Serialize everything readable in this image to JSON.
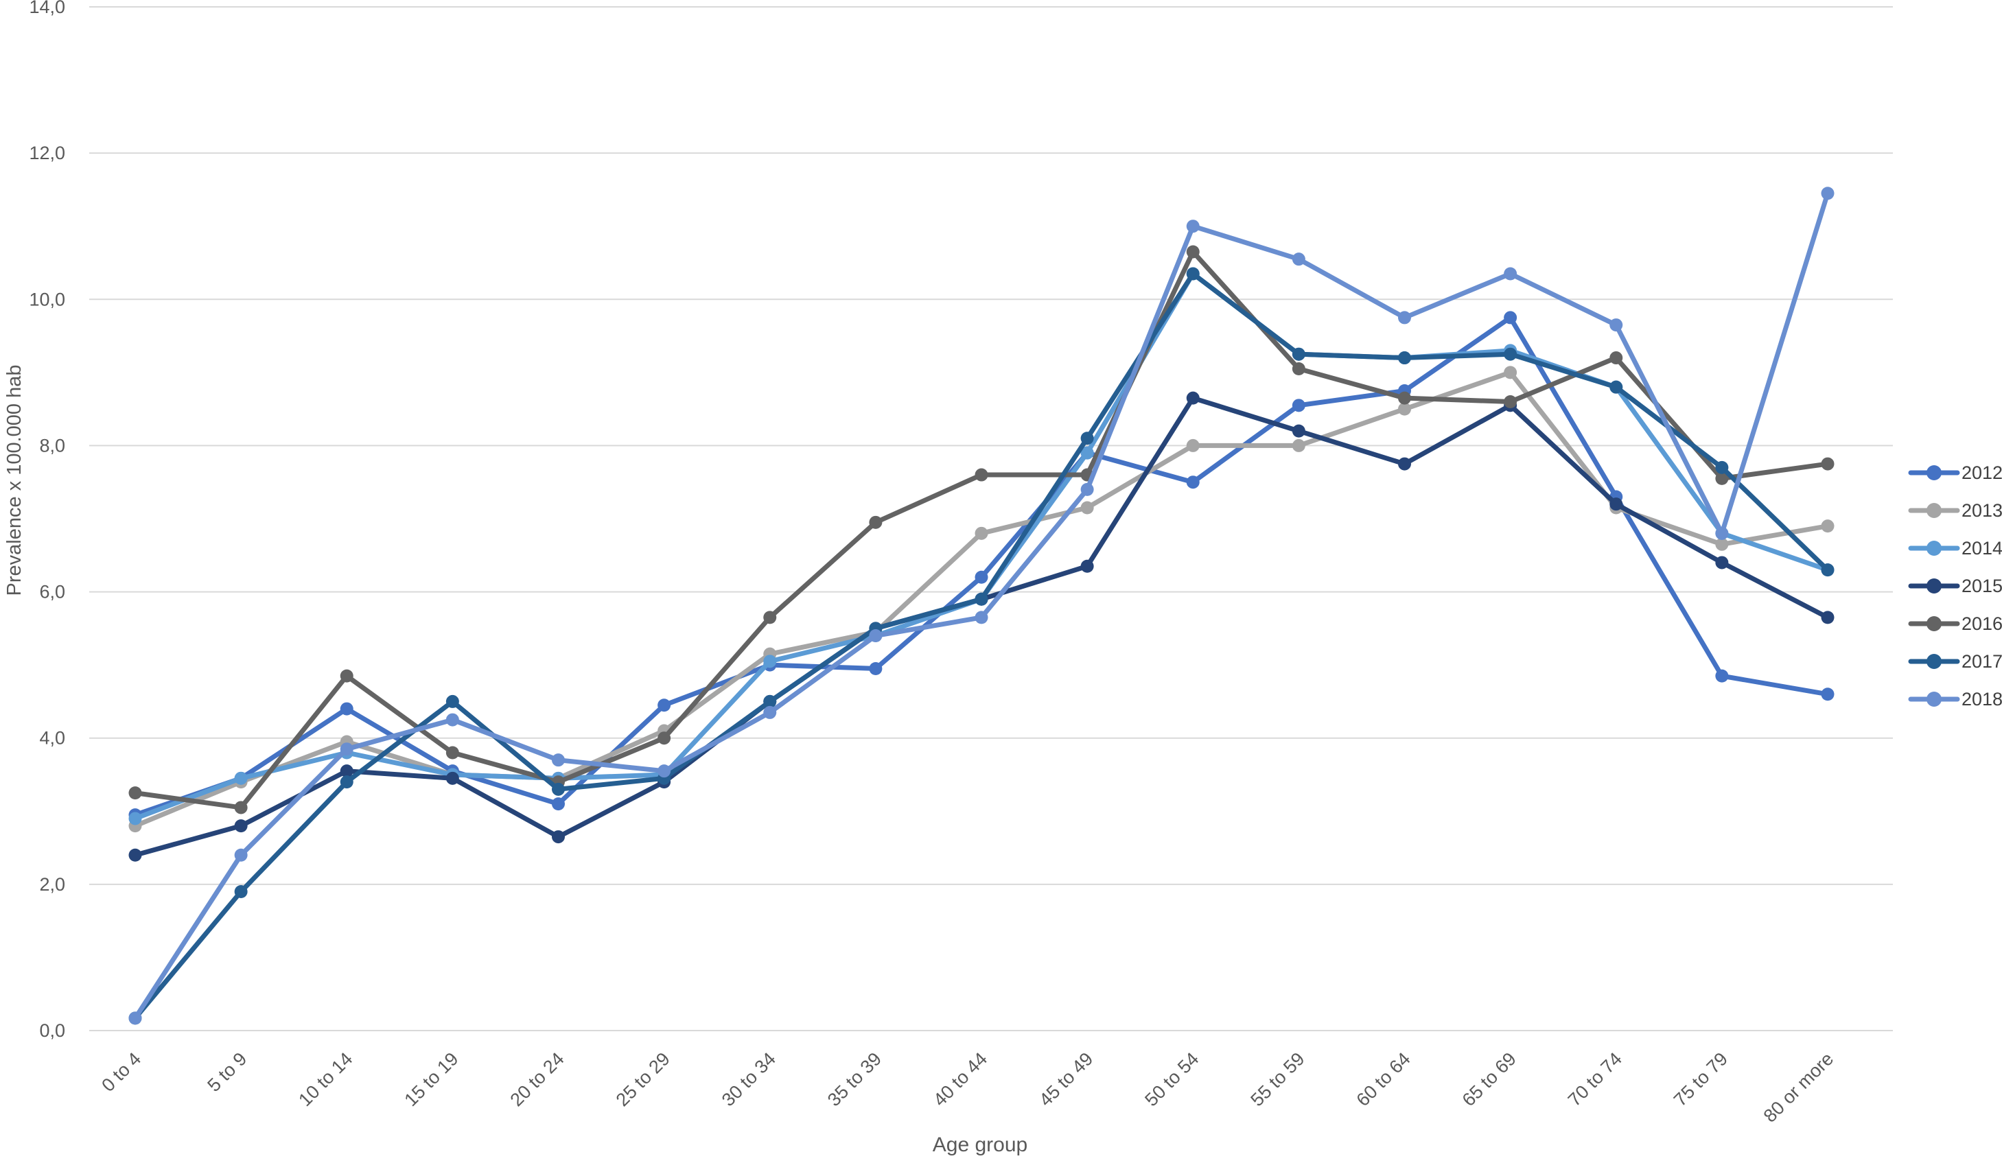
{
  "chart_data": {
    "type": "line",
    "title": "",
    "xlabel": "Age group",
    "ylabel": "Prevalence x 100.000 hab",
    "categories": [
      "0 to 4",
      "5 to 9",
      "10 to 14",
      "15 to 19",
      "20 to 24",
      "25 to 29",
      "30 to 34",
      "35 to 39",
      "40 to 44",
      "45 to 49",
      "50 to 54",
      "55 to 59",
      "60 to 64",
      "65 to 69",
      "70 to 74",
      "75 to 79",
      "80 or more"
    ],
    "y_ticks": [
      {
        "label": "0,0",
        "value": 0
      },
      {
        "label": "2,0",
        "value": 2
      },
      {
        "label": "4,0",
        "value": 4
      },
      {
        "label": "6,0",
        "value": 6
      },
      {
        "label": "8,0",
        "value": 8
      },
      {
        "label": "10,0",
        "value": 10
      },
      {
        "label": "12,0",
        "value": 12
      },
      {
        "label": "14,0",
        "value": 14
      }
    ],
    "ylim": [
      0,
      14
    ],
    "grid": "horizontal",
    "legend_position": "right",
    "series": [
      {
        "name": "2012",
        "color": "#4472C4",
        "values": [
          2.95,
          3.45,
          4.4,
          3.55,
          3.1,
          4.45,
          5.0,
          4.95,
          6.2,
          7.9,
          7.5,
          8.55,
          8.75,
          9.75,
          7.3,
          4.85,
          4.6
        ]
      },
      {
        "name": "2013",
        "color": "#A5A5A5",
        "values": [
          2.8,
          3.4,
          3.95,
          3.5,
          3.45,
          4.1,
          5.15,
          5.45,
          6.8,
          7.15,
          8.0,
          8.0,
          8.5,
          9.0,
          7.15,
          6.65,
          6.9
        ]
      },
      {
        "name": "2014",
        "color": "#5B9BD5",
        "values": [
          2.9,
          3.45,
          3.8,
          3.5,
          3.45,
          3.5,
          5.05,
          5.4,
          5.9,
          7.9,
          10.35,
          9.25,
          9.2,
          9.3,
          8.8,
          6.8,
          6.3
        ]
      },
      {
        "name": "2015",
        "color": "#264478",
        "values": [
          2.4,
          2.8,
          3.55,
          3.45,
          2.65,
          3.4,
          4.5,
          5.5,
          5.9,
          6.35,
          8.65,
          8.2,
          7.75,
          8.55,
          7.2,
          6.4,
          5.65
        ]
      },
      {
        "name": "2016",
        "color": "#636363",
        "values": [
          3.25,
          3.05,
          4.85,
          3.8,
          3.4,
          4.0,
          5.65,
          6.95,
          7.6,
          7.6,
          10.65,
          9.05,
          8.65,
          8.6,
          9.2,
          7.55,
          7.75
        ]
      },
      {
        "name": "2017",
        "color": "#255E91",
        "values": [
          0.17,
          1.9,
          3.4,
          4.5,
          3.3,
          3.45,
          4.5,
          5.5,
          5.9,
          8.1,
          10.35,
          9.25,
          9.2,
          9.25,
          8.8,
          7.7,
          6.3
        ]
      },
      {
        "name": "2018",
        "color": "#698ED0",
        "values": [
          0.17,
          2.4,
          3.85,
          4.25,
          3.7,
          3.55,
          4.35,
          5.4,
          5.65,
          7.4,
          11.0,
          10.55,
          9.75,
          10.35,
          9.65,
          6.8,
          11.45
        ]
      }
    ]
  },
  "colors": {
    "grid": "#D9D9D9",
    "axis_line": "#D9D9D9",
    "tick_text": "#595959",
    "title_text": "#595959",
    "legend_text": "#404040"
  }
}
